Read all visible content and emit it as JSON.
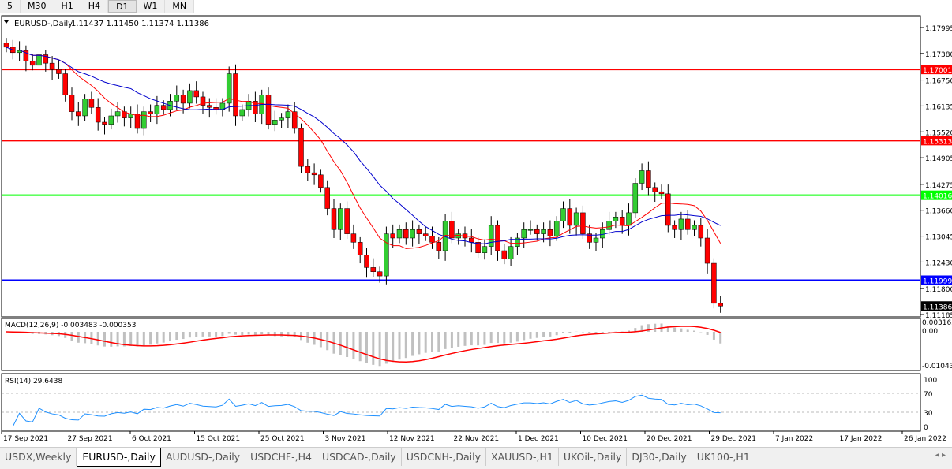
{
  "toolbar": {
    "timeframes": [
      "5",
      "M30",
      "H1",
      "H4",
      "D1",
      "W1",
      "MN"
    ],
    "active": "D1"
  },
  "chart": {
    "title": "EURUSD-,Daily",
    "ohlc": "1.11437 1.11450 1.11374 1.11386",
    "price_ticks": [
      "1.17995",
      "1.17380",
      "1.16750",
      "1.16135",
      "1.15520",
      "1.14905",
      "1.14275",
      "1.13660",
      "1.13045",
      "1.12430",
      "1.11800",
      "1.11185"
    ],
    "price_tick_values": [
      1.17995,
      1.1738,
      1.1675,
      1.16135,
      1.1552,
      1.14905,
      1.14275,
      1.1366,
      1.13045,
      1.1243,
      1.118,
      1.11185
    ],
    "hlines": [
      {
        "label": "1.17001",
        "value": 1.17001,
        "color": "#ff0000"
      },
      {
        "label": "1.15313",
        "value": 1.15313,
        "color": "#ff0000"
      },
      {
        "label": "1.14016",
        "value": 1.14016,
        "color": "#00ff00"
      },
      {
        "label": "1.11999",
        "value": 1.11999,
        "color": "#0000ff"
      }
    ],
    "current_price": "1.11386",
    "colors": {
      "bull": "#32cd32",
      "bear": "#ff0000",
      "ma_fast": "#ff0000",
      "ma_slow": "#0000cd"
    },
    "closes": [
      1.1753,
      1.174,
      1.1745,
      1.172,
      1.171,
      1.1735,
      1.1715,
      1.17,
      1.169,
      1.164,
      1.16,
      1.159,
      1.163,
      1.161,
      1.1575,
      1.157,
      1.159,
      1.16,
      1.1585,
      1.1595,
      1.156,
      1.16,
      1.1595,
      1.1615,
      1.1605,
      1.1625,
      1.164,
      1.162,
      1.165,
      1.1635,
      1.1615,
      1.161,
      1.1605,
      1.162,
      1.169,
      1.159,
      1.1605,
      1.1625,
      1.1595,
      1.164,
      1.157,
      1.158,
      1.1585,
      1.16,
      1.156,
      1.147,
      1.1455,
      1.145,
      1.142,
      1.137,
      1.132,
      1.137,
      1.131,
      1.129,
      1.126,
      1.123,
      1.122,
      1.121,
      1.131,
      1.13,
      1.132,
      1.13,
      1.132,
      1.131,
      1.1305,
      1.129,
      1.127,
      1.134,
      1.13,
      1.131,
      1.13,
      1.129,
      1.1265,
      1.128,
      1.133,
      1.127,
      1.125,
      1.128,
      1.13,
      1.132,
      1.132,
      1.131,
      1.132,
      1.1305,
      1.134,
      1.137,
      1.133,
      1.136,
      1.131,
      1.129,
      1.13,
      1.132,
      1.134,
      1.135,
      1.133,
      1.136,
      1.143,
      1.146,
      1.142,
      1.141,
      1.1405,
      1.133,
      1.132,
      1.1345,
      1.132,
      1.133,
      1.13,
      1.124,
      1.1145,
      1.11386
    ]
  },
  "macd": {
    "label": "MACD(12,26,9) -0.003483 -0.000353",
    "ticks": [
      "0.003165",
      "0.00",
      "-0.01043"
    ]
  },
  "rsi": {
    "label": "RSI(14) 29.6438",
    "ticks": [
      "100",
      "70",
      "30",
      "0"
    ]
  },
  "dates": [
    "17 Sep 2021",
    "27 Sep 2021",
    "6 Oct 2021",
    "15 Oct 2021",
    "25 Oct 2021",
    "3 Nov 2021",
    "12 Nov 2021",
    "22 Nov 2021",
    "1 Dec 2021",
    "10 Dec 2021",
    "20 Dec 2021",
    "29 Dec 2021",
    "7 Jan 2022",
    "17 Jan 2022",
    "26 Jan 2022"
  ],
  "tabs": [
    "USDX,Weekly",
    "EURUSD-,Daily",
    "AUDUSD-,Daily",
    "USDCHF-,H4",
    "USDCAD-,Daily",
    "USDCNH-,Daily",
    "XAUUSD-,H1",
    "UKOil-,Daily",
    "DJ30-,Daily",
    "UK100-,H1"
  ],
  "active_tab": "EURUSD-,Daily"
}
